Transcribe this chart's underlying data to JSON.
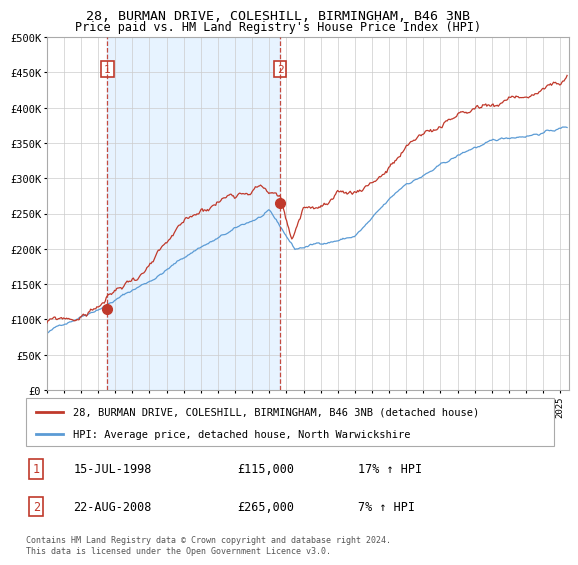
{
  "title": "28, BURMAN DRIVE, COLESHILL, BIRMINGHAM, B46 3NB",
  "subtitle": "Price paid vs. HM Land Registry's House Price Index (HPI)",
  "legend_line1": "28, BURMAN DRIVE, COLESHILL, BIRMINGHAM, B46 3NB (detached house)",
  "legend_line2": "HPI: Average price, detached house, North Warwickshire",
  "purchase1_date": "15-JUL-1998",
  "purchase1_price": 115000,
  "purchase1_hpi": "17% ↑ HPI",
  "purchase1_year": 1998.54,
  "purchase2_date": "22-AUG-2008",
  "purchase2_price": 265000,
  "purchase2_hpi": "7% ↑ HPI",
  "purchase2_year": 2008.64,
  "footnote": "Contains HM Land Registry data © Crown copyright and database right 2024.\nThis data is licensed under the Open Government Licence v3.0.",
  "hpi_color": "#5b9bd5",
  "price_color": "#c0392b",
  "vline_color": "#c0392b",
  "shade_color": "#ddeeff",
  "ylim_max": 500000,
  "ylim_min": 0,
  "xmin": 1995,
  "xmax": 2025.5,
  "background_color": "#ffffff",
  "grid_color": "#cccccc"
}
